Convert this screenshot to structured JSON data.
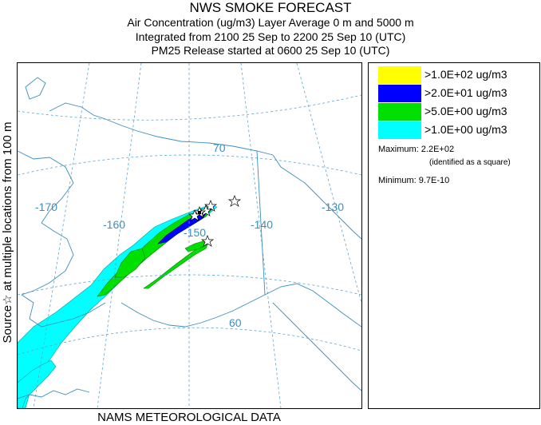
{
  "header": {
    "title": "NWS SMOKE FORECAST",
    "line1": "Air Concentration (ug/m3) Layer Average    0 m and  5000 m",
    "line2": "Integrated from 2100 25 Sep to 2200 25 Sep 10 (UTC)",
    "line3": "PM25 Release started at 0600 25 Sep 10 (UTC)"
  },
  "side_label": "Source☆  at multiple locations  from  100 m",
  "footer": "NAMS METEOROLOGICAL DATA",
  "map": {
    "lon_labels": [
      "-170",
      "-160",
      "-150",
      "-140",
      "-130"
    ],
    "lat_labels": [
      "70",
      "60"
    ],
    "coast_color": "#3a8fbf",
    "grid_color": "#5aa5d0"
  },
  "legend": {
    "items": [
      {
        "label": ">1.0E+02 ug/m3",
        "color": "#ffff00"
      },
      {
        "label": ">2.0E+01 ug/m3",
        "color": "#0000ff"
      },
      {
        "label": ">5.0E+00 ug/m3",
        "color": "#00e000"
      },
      {
        "label": ">1.0E+00 ug/m3",
        "color": "#00ffff"
      }
    ],
    "maximum_label": "Maximum:",
    "maximum_value": "2.2E+02",
    "maximum_note": "(identified as a square)",
    "minimum_label": "Minimum:",
    "minimum_value": "9.7E-10"
  }
}
